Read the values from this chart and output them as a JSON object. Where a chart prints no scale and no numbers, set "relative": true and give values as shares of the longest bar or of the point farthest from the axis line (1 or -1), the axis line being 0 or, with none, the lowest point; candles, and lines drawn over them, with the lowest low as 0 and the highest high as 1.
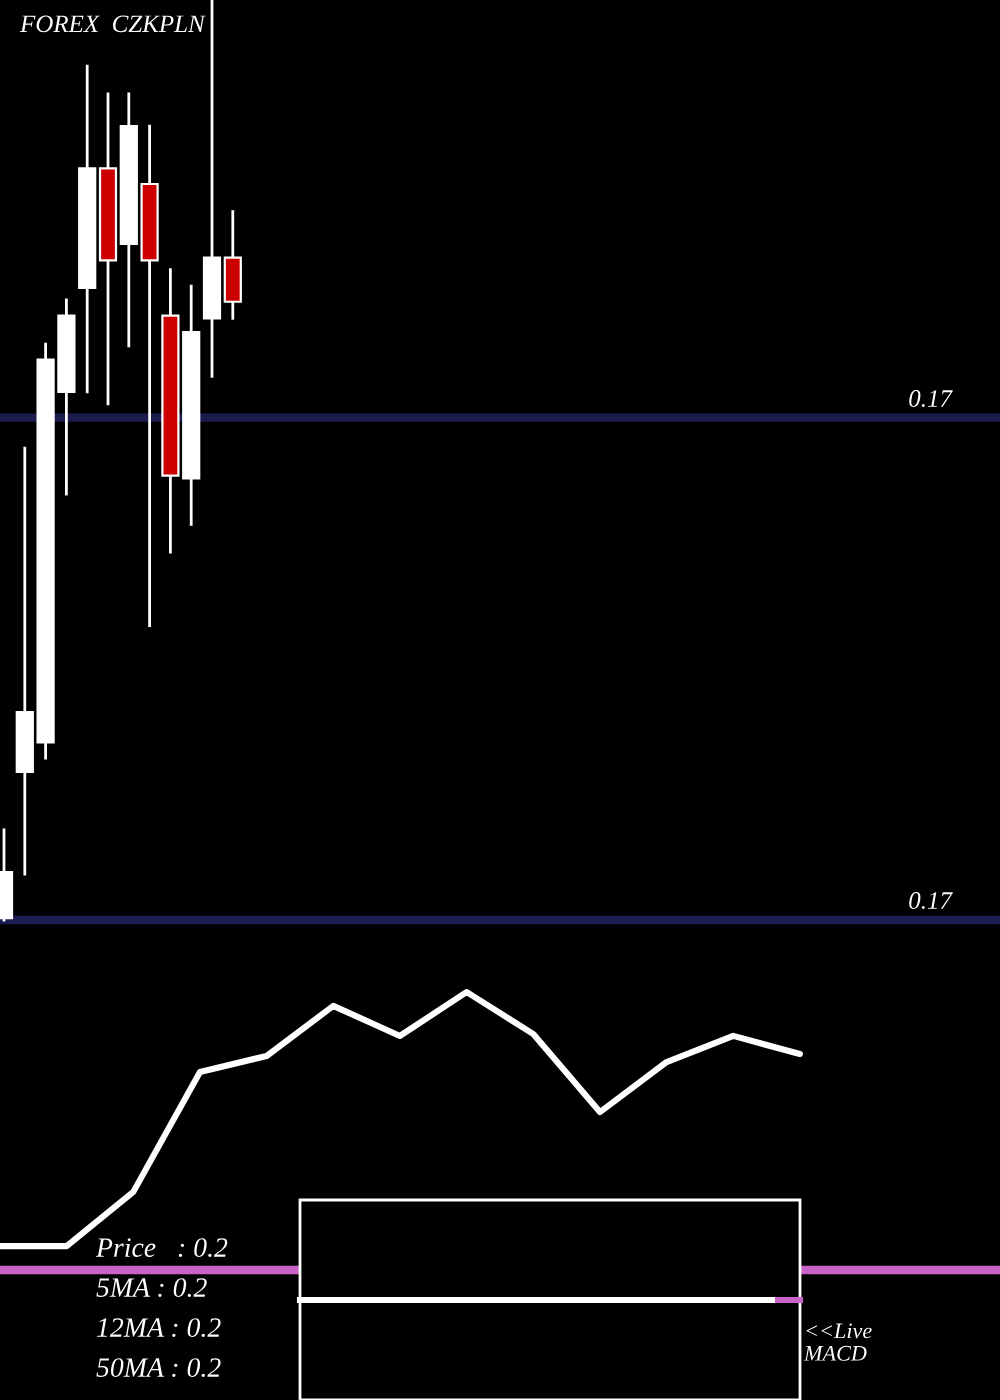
{
  "chart_data": [
    {
      "type": "candlestick",
      "title": "FOREX  CZKPLN",
      "relative": true,
      "categories": [
        null,
        null,
        null,
        null,
        null,
        null,
        null,
        null,
        null,
        null,
        null,
        null
      ],
      "ohlc": [
        [
          0.002,
          0.098,
          0.0,
          0.052
        ],
        [
          0.161,
          0.513,
          0.05,
          0.226
        ],
        [
          0.193,
          0.626,
          0.176,
          0.609
        ],
        [
          0.574,
          0.674,
          0.463,
          0.657
        ],
        [
          0.687,
          0.928,
          0.574,
          0.817
        ],
        [
          0.817,
          0.898,
          0.561,
          0.717
        ],
        [
          0.735,
          0.898,
          0.624,
          0.863
        ],
        [
          0.8,
          0.863,
          0.32,
          0.717
        ],
        [
          0.657,
          0.707,
          0.4,
          0.483
        ],
        [
          0.48,
          0.689,
          0.43,
          0.639
        ],
        [
          0.654,
          1.0,
          0.591,
          0.72
        ],
        [
          0.72,
          0.77,
          0.654,
          0.672
        ]
      ],
      "colors": [
        "#ffffff",
        "#ffffff",
        "#ffffff",
        "#ffffff",
        "#ffffff",
        "#cc0000",
        "#ffffff",
        "#cc0000",
        "#cc0000",
        "#ffffff",
        "#ffffff",
        "#cc0000"
      ],
      "ref_lines": [
        {
          "axis": "y",
          "value": 0.546,
          "color": "#1c1c50"
        },
        {
          "axis": "y",
          "value": 0.0,
          "color": "#1c1c50"
        }
      ],
      "annotations": [
        "0.17",
        "0.17"
      ],
      "tick_labels": false
    },
    {
      "type": "line",
      "relative": true,
      "categories": [
        null,
        null,
        null,
        null,
        null,
        null,
        null,
        null,
        null,
        null,
        null,
        null,
        null
      ],
      "series": [
        {
          "color": "#ffffff",
          "values": [
            0.086,
            0.086,
            0.281,
            0.712,
            0.77,
            0.95,
            0.842,
            1.0,
            0.849,
            0.568,
            0.748,
            0.842,
            0.777
          ]
        }
      ],
      "ref_lines": [
        {
          "axis": "y",
          "value": 0.0,
          "color": "#c864c8"
        }
      ],
      "annotations": [
        "Price   : 0.2",
        "5MA : 0.2",
        "12MA : 0.2",
        "50MA : 0.2",
        "<<Live\nMACD"
      ],
      "tick_labels": false
    }
  ]
}
